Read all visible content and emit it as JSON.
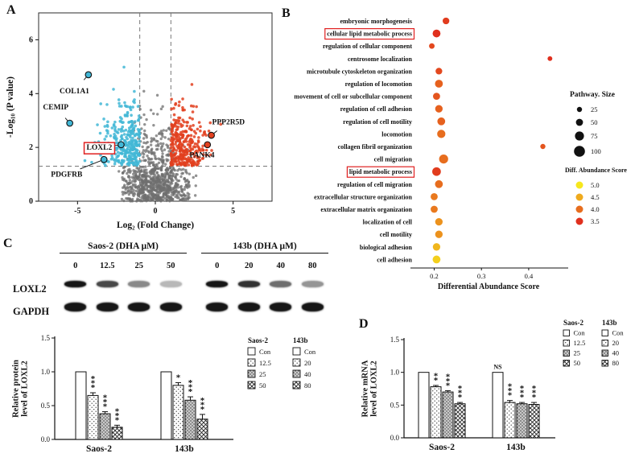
{
  "panels": {
    "a": "A",
    "b": "B",
    "c": "C",
    "d": "D"
  },
  "chart_data": [
    {
      "id": "volcano",
      "type": "scatter",
      "xlabel": "Log₂ (Fold Change)",
      "ylabel": "-Log₁₀ (P value)",
      "xlim": [
        -7.5,
        7.5
      ],
      "ylim": [
        0,
        7
      ],
      "xticks": [
        -5,
        0,
        5
      ],
      "yticks": [
        0,
        2,
        4,
        6
      ],
      "thresholds": {
        "x": [
          -1,
          1
        ],
        "y": 1.3
      },
      "point_groups": [
        {
          "name": "downregulated",
          "color": "#42b7d6",
          "count": 320
        },
        {
          "name": "not-significant",
          "color": "#6f6f6f",
          "count": 850
        },
        {
          "name": "upregulated",
          "color": "#e2401f",
          "count": 320
        }
      ],
      "labeled_genes": [
        {
          "gene": "COL1A1",
          "x": -4.3,
          "y": 4.7,
          "group": "downregulated",
          "label_x": -5.2,
          "label_y": 4.1,
          "boxed": false
        },
        {
          "gene": "CEMIP",
          "x": -5.5,
          "y": 2.9,
          "group": "downregulated",
          "label_x": -6.4,
          "label_y": 3.5,
          "boxed": false
        },
        {
          "gene": "LOXL2",
          "x": -2.2,
          "y": 2.1,
          "group": "downregulated",
          "label_x": -3.6,
          "label_y": 2.0,
          "boxed": true
        },
        {
          "gene": "PDGFRB",
          "x": -3.3,
          "y": 1.55,
          "group": "downregulated",
          "label_x": -5.7,
          "label_y": 1.0,
          "boxed": false
        },
        {
          "gene": "PPP2R5D",
          "x": 3.6,
          "y": 2.45,
          "group": "upregulated",
          "label_x": 4.7,
          "label_y": 2.95,
          "boxed": false
        },
        {
          "gene": "PANK4",
          "x": 3.35,
          "y": 2.1,
          "group": "upregulated",
          "label_x": 3.0,
          "label_y": 1.72,
          "boxed": false
        }
      ]
    },
    {
      "id": "go_dotplot",
      "type": "scatter",
      "xlabel": "Differential Abundance Score",
      "xlim": [
        0.16,
        0.47
      ],
      "xticks": [
        0.2,
        0.3,
        0.4
      ],
      "score_range": [
        3.5,
        5.0
      ],
      "terms": [
        {
          "label": "embryonic morphogenesis",
          "x": 0.225,
          "size": 45,
          "score": 3.6,
          "boxed": false
        },
        {
          "label": "cellular lipid metabolic process",
          "x": 0.205,
          "size": 60,
          "score": 3.5,
          "boxed": true
        },
        {
          "label": "regulation of cellular component",
          "x": 0.195,
          "size": 30,
          "score": 3.7,
          "boxed": false
        },
        {
          "label": "centrosome localization",
          "x": 0.445,
          "size": 20,
          "score": 3.5,
          "boxed": false
        },
        {
          "label": "microtubule cytoskeleton organization",
          "x": 0.21,
          "size": 45,
          "score": 3.7,
          "boxed": false
        },
        {
          "label": "regulation of locomotion",
          "x": 0.21,
          "size": 60,
          "score": 3.9,
          "boxed": false
        },
        {
          "label": "movement of cell or subcellular component",
          "x": 0.205,
          "size": 50,
          "score": 3.8,
          "boxed": false
        },
        {
          "label": "regulation of cell adhesion",
          "x": 0.21,
          "size": 55,
          "score": 3.9,
          "boxed": false
        },
        {
          "label": "regulation of cell motility",
          "x": 0.215,
          "size": 60,
          "score": 3.9,
          "boxed": false
        },
        {
          "label": "locomotion",
          "x": 0.215,
          "size": 65,
          "score": 4.0,
          "boxed": false
        },
        {
          "label": "collagen fibril organization",
          "x": 0.43,
          "size": 25,
          "score": 3.8,
          "boxed": false
        },
        {
          "label": "cell migration",
          "x": 0.22,
          "size": 75,
          "score": 4.0,
          "boxed": false
        },
        {
          "label": "lipid metabolic process",
          "x": 0.205,
          "size": 70,
          "score": 3.6,
          "boxed": true
        },
        {
          "label": "regulation of cell migration",
          "x": 0.21,
          "size": 60,
          "score": 4.0,
          "boxed": false
        },
        {
          "label": "extracellular structure organization",
          "x": 0.2,
          "size": 50,
          "score": 4.1,
          "boxed": false
        },
        {
          "label": "extracellular matrix organization",
          "x": 0.2,
          "size": 50,
          "score": 4.1,
          "boxed": false
        },
        {
          "label": "localization of cell",
          "x": 0.21,
          "size": 55,
          "score": 4.3,
          "boxed": false
        },
        {
          "label": "cell motility",
          "x": 0.21,
          "size": 55,
          "score": 4.3,
          "boxed": false
        },
        {
          "label": "biological adhesion",
          "x": 0.205,
          "size": 55,
          "score": 4.6,
          "boxed": false
        },
        {
          "label": "cell adhesion",
          "x": 0.205,
          "size": 60,
          "score": 4.8,
          "boxed": false
        }
      ],
      "legend_size": {
        "title": "Pathway. Size",
        "values": [
          25,
          50,
          75,
          100
        ]
      },
      "legend_color": {
        "title": "Diff. Abundance Score",
        "values": [
          5.0,
          4.5,
          4.0,
          3.5
        ],
        "scale": [
          "#f6e71d",
          "#e0301e"
        ]
      }
    },
    {
      "id": "protein_bar",
      "type": "bar",
      "ylabel": "Relative protein level of LOXL2",
      "ylabel_lines": [
        "Relative protein",
        "level of LOXL2"
      ],
      "ylim": [
        0,
        1.5
      ],
      "yticks": [
        0,
        0.5,
        1.0,
        1.5
      ],
      "groups": [
        {
          "name": "Saos-2",
          "doses": [
            "Con",
            "12.5",
            "25",
            "50"
          ],
          "values": [
            1.0,
            0.65,
            0.38,
            0.18
          ],
          "errors": [
            0,
            0.04,
            0.03,
            0.03
          ],
          "sig": [
            "",
            "***",
            "***",
            "***"
          ]
        },
        {
          "name": "143b",
          "doses": [
            "Con",
            "20",
            "40",
            "80"
          ],
          "values": [
            1.0,
            0.8,
            0.58,
            0.3
          ],
          "errors": [
            0,
            0.04,
            0.05,
            0.07
          ],
          "sig": [
            "",
            "*",
            "***",
            "***"
          ]
        }
      ]
    },
    {
      "id": "mrna_bar",
      "type": "bar",
      "ylabel": "Relative mRNA level of LOXL2",
      "ylabel_lines": [
        "Relative mRNA",
        "level of LOXL2"
      ],
      "ylim": [
        0,
        1.5
      ],
      "yticks": [
        0,
        0.5,
        1.0,
        1.5
      ],
      "groups": [
        {
          "name": "Saos-2",
          "doses": [
            "Con",
            "12.5",
            "25",
            "50"
          ],
          "values": [
            1.0,
            0.78,
            0.7,
            0.52
          ],
          "errors": [
            0,
            0.02,
            0.02,
            0.02
          ],
          "sig": [
            "",
            "**",
            "***",
            "***"
          ]
        },
        {
          "name": "143b",
          "doses": [
            "Con",
            "20",
            "40",
            "80"
          ],
          "values": [
            1.0,
            0.54,
            0.52,
            0.51
          ],
          "errors": [
            0,
            0.03,
            0.02,
            0.03
          ],
          "sig": [
            "NS",
            "***",
            "***",
            "***"
          ]
        }
      ]
    }
  ],
  "blots": {
    "row_labels": [
      "LOXL2",
      "GAPDH"
    ],
    "groups": [
      {
        "title": "Saos-2 (DHA μM)",
        "doses": [
          "0",
          "12.5",
          "25",
          "50"
        ],
        "loxl2_intensity": [
          1,
          0.78,
          0.5,
          0.3
        ],
        "gapdh_intensity": [
          1,
          1,
          1,
          1
        ]
      },
      {
        "title": "143b (DHA μM)",
        "doses": [
          "0",
          "20",
          "40",
          "80"
        ],
        "loxl2_intensity": [
          1,
          0.88,
          0.62,
          0.45
        ],
        "gapdh_intensity": [
          1,
          1,
          1,
          1
        ]
      }
    ]
  }
}
